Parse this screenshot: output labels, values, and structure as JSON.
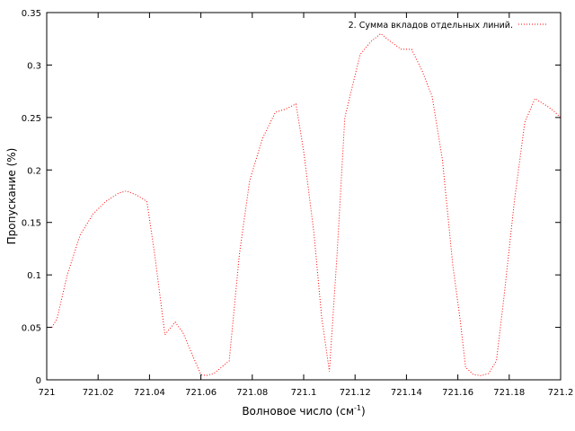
{
  "chart_data": {
    "type": "line",
    "title": "",
    "xlabel": "Волновое число (см",
    "xlabel_sup": "-1",
    "xlabel_close": ")",
    "ylabel": "Пропускание (%)",
    "xlim": [
      721,
      721.2
    ],
    "ylim": [
      0,
      0.35
    ],
    "x_ticks": [
      721,
      721.02,
      721.04,
      721.06,
      721.08,
      721.1,
      721.12,
      721.14,
      721.16,
      721.18,
      721.2
    ],
    "x_tick_labels": [
      "721",
      "721.02",
      "721.04",
      "721.06",
      "721.08",
      "721.1",
      "721.12",
      "721.14",
      "721.16",
      "721.18",
      "721.2"
    ],
    "y_ticks": [
      0,
      0.05,
      0.1,
      0.15,
      0.2,
      0.25,
      0.3,
      0.35
    ],
    "y_tick_labels": [
      "0",
      "0.05",
      "0.1",
      "0.15",
      "0.2",
      "0.25",
      "0.3",
      "0.35"
    ],
    "grid": false,
    "legend_position": "top-right",
    "series": [
      {
        "name": "2. Сумма вкладов отдельных линий.",
        "color": "#ff0000",
        "line_style": "dotted",
        "x": [
          721.002,
          721.004,
          721.008,
          721.013,
          721.018,
          721.023,
          721.028,
          721.031,
          721.035,
          721.039,
          721.042,
          721.046,
          721.05,
          721.053,
          721.057,
          721.06,
          721.062,
          721.065,
          721.068,
          721.071,
          721.075,
          721.079,
          721.084,
          721.089,
          721.093,
          721.097,
          721.1,
          721.104,
          721.107,
          721.11,
          721.113,
          721.116,
          721.119,
          721.122,
          721.126,
          721.13,
          721.134,
          721.138,
          721.142,
          721.146,
          721.15,
          721.154,
          721.158,
          721.161,
          721.163,
          721.166,
          721.169,
          721.172,
          721.175,
          721.178,
          721.182,
          721.186,
          721.19,
          721.194,
          721.197,
          721.2
        ],
        "y": [
          0.05,
          0.058,
          0.1,
          0.138,
          0.158,
          0.17,
          0.178,
          0.18,
          0.176,
          0.17,
          0.12,
          0.043,
          0.055,
          0.045,
          0.022,
          0.005,
          0.004,
          0.006,
          0.012,
          0.018,
          0.12,
          0.19,
          0.23,
          0.255,
          0.258,
          0.263,
          0.218,
          0.14,
          0.06,
          0.008,
          0.12,
          0.25,
          0.28,
          0.31,
          0.322,
          0.33,
          0.322,
          0.315,
          0.315,
          0.295,
          0.27,
          0.21,
          0.11,
          0.055,
          0.012,
          0.005,
          0.004,
          0.006,
          0.018,
          0.08,
          0.17,
          0.245,
          0.268,
          0.262,
          0.257,
          0.25
        ]
      }
    ]
  }
}
